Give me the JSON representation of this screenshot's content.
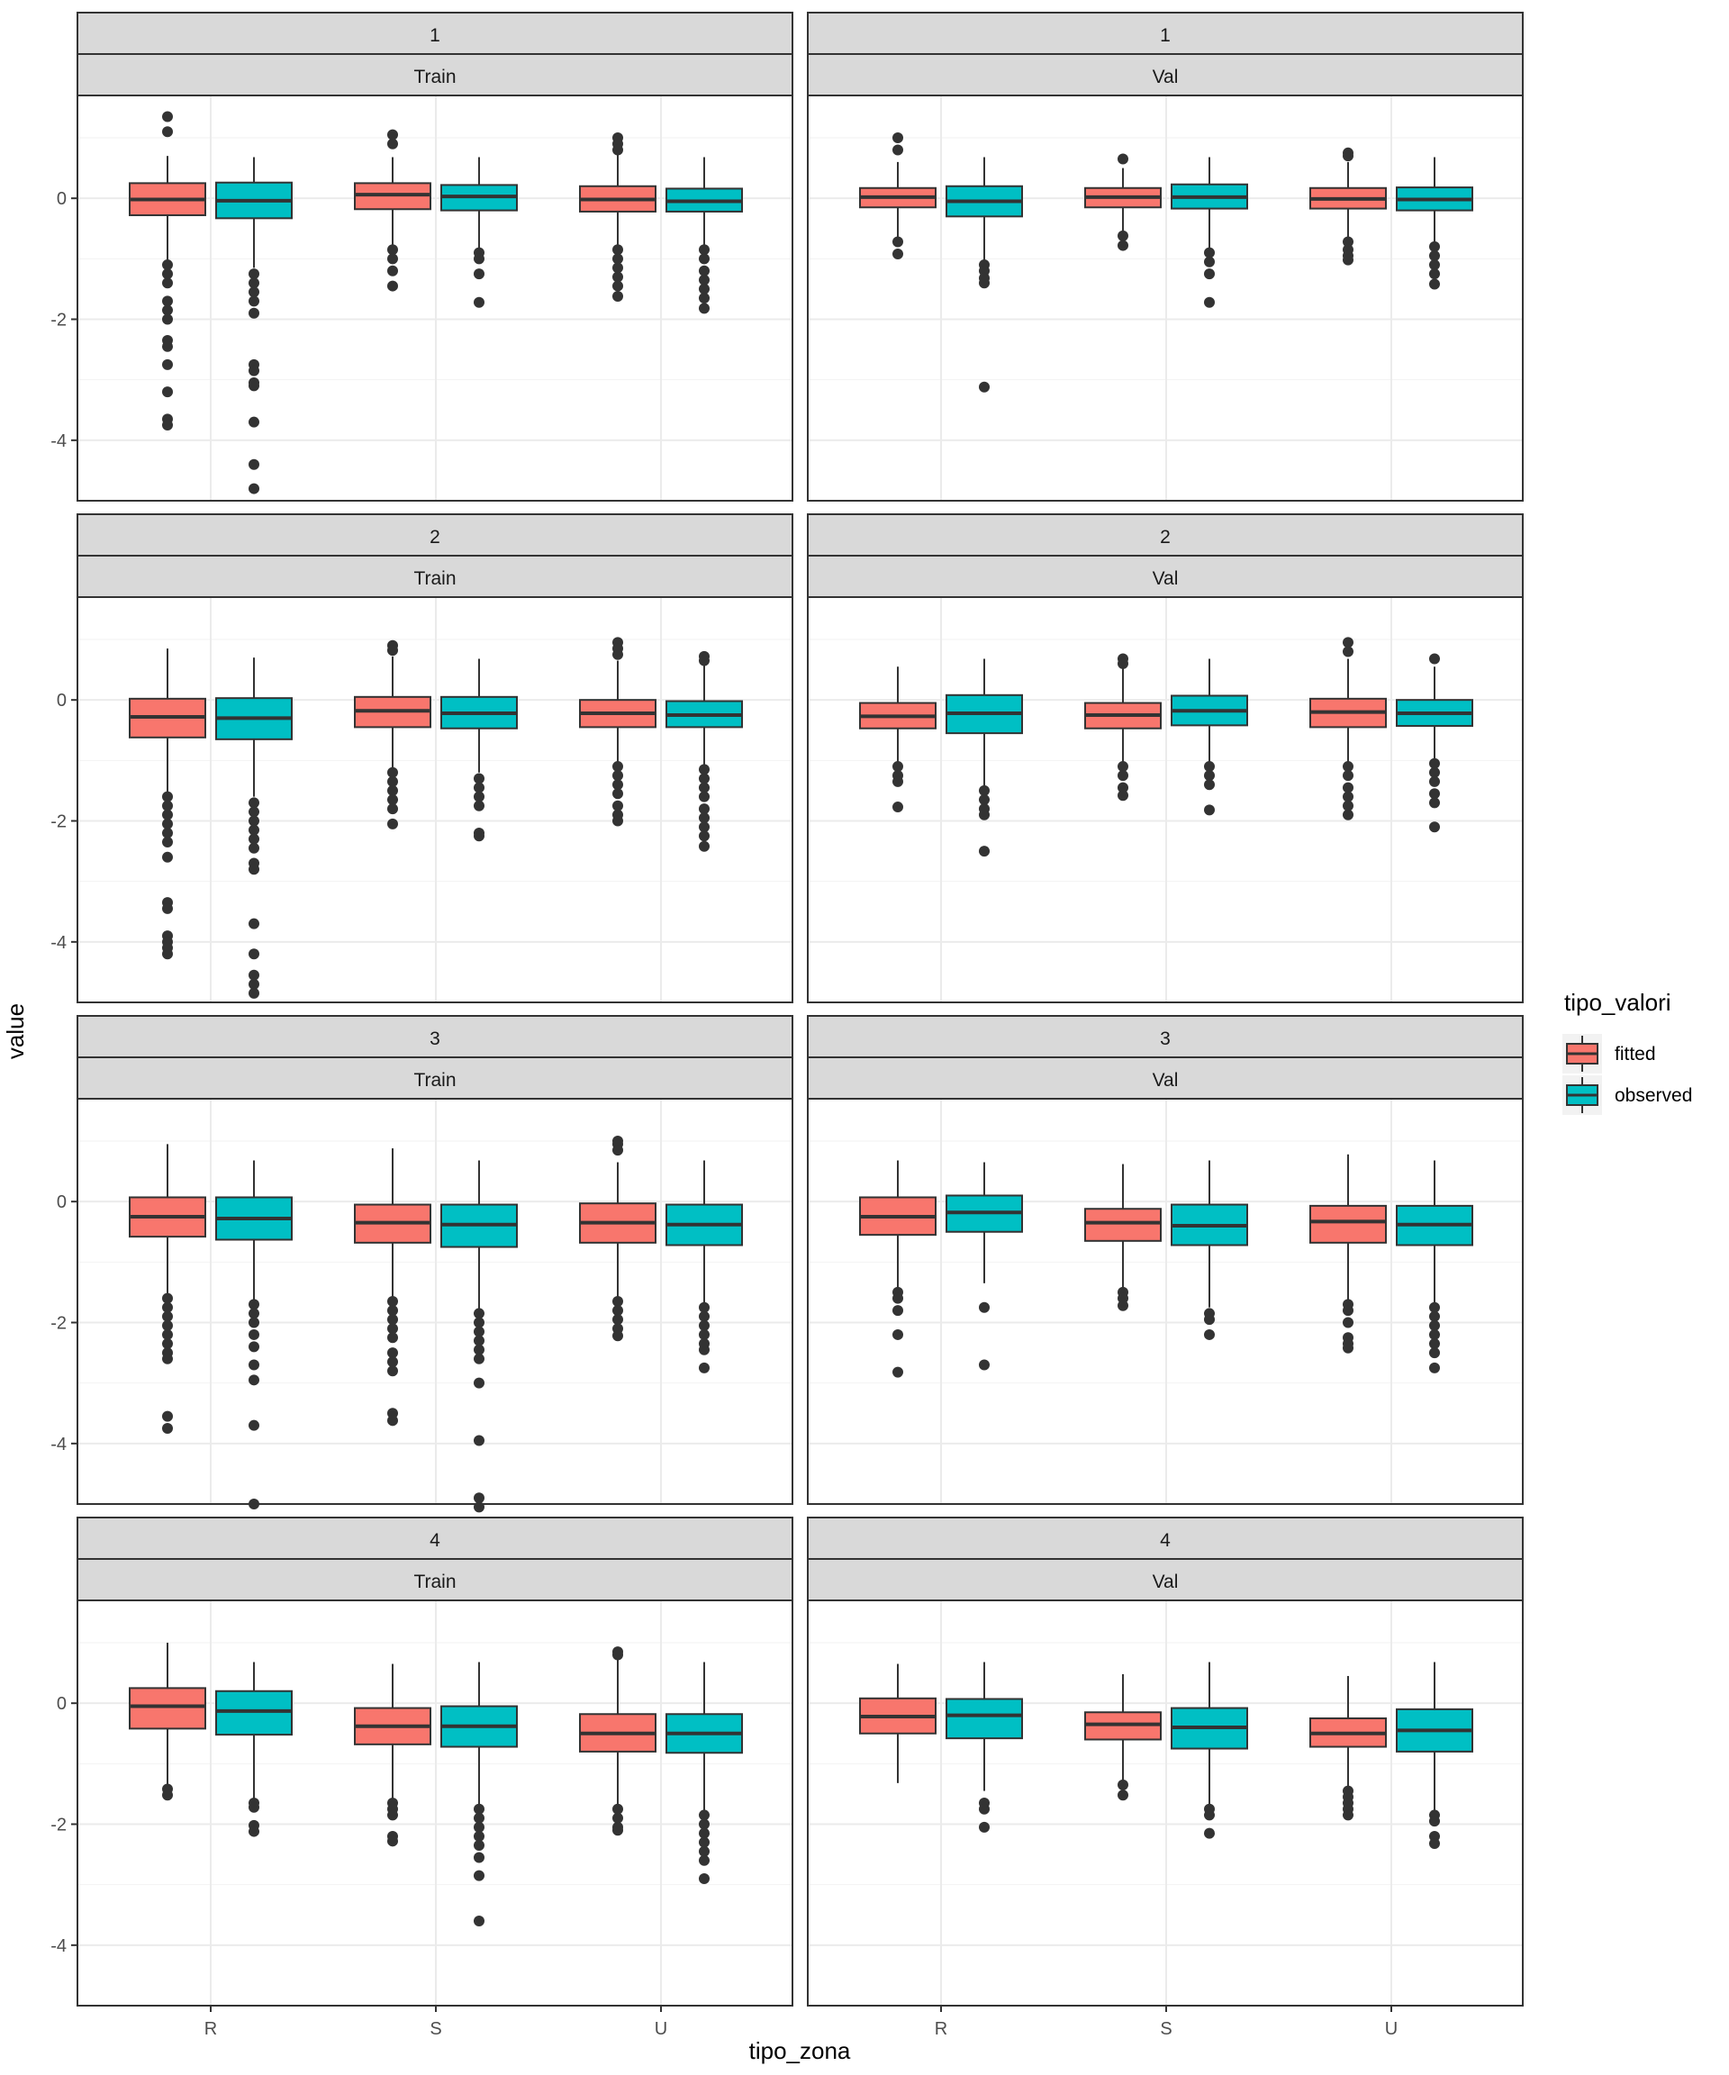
{
  "chart_data": {
    "type": "boxplot",
    "title": "",
    "xlabel": "tipo_zona",
    "ylabel": "value",
    "categories": [
      "R",
      "S",
      "U"
    ],
    "ylim": [
      -5.0,
      1.7
    ],
    "y_ticks": [
      0,
      -2,
      -4
    ],
    "y_tick_labels": [
      "0",
      "-2",
      "-4"
    ],
    "grid": true,
    "legend": {
      "title": "tipo_valori",
      "position": "right",
      "items": [
        {
          "name": "fitted",
          "color": "#F8766D"
        },
        {
          "name": "observed",
          "color": "#00BFC4"
        }
      ]
    },
    "panels": [
      {
        "strip_top": "1",
        "strip_bottom": "Train",
        "boxes": [
          {
            "category": "R",
            "series": "fitted",
            "q1": -0.28,
            "median": -0.02,
            "q3": 0.25,
            "wlo": -1.05,
            "whi": 0.7,
            "outliers": [
              1.35,
              1.1,
              -1.1,
              -1.25,
              -1.4,
              -1.7,
              -1.85,
              -2.0,
              -2.35,
              -2.45,
              -2.75,
              -3.2,
              -3.65,
              -3.75
            ]
          },
          {
            "category": "R",
            "series": "observed",
            "q1": -0.33,
            "median": -0.04,
            "q3": 0.26,
            "wlo": -1.15,
            "whi": 0.68,
            "outliers": [
              -1.25,
              -1.4,
              -1.55,
              -1.7,
              -1.9,
              -2.75,
              -2.85,
              -3.05,
              -3.1,
              -3.7,
              -4.4,
              -4.8
            ]
          },
          {
            "category": "S",
            "series": "fitted",
            "q1": -0.18,
            "median": 0.06,
            "q3": 0.25,
            "wlo": -0.8,
            "whi": 0.68,
            "outliers": [
              1.05,
              0.9,
              -0.85,
              -1.0,
              -1.2,
              -1.45
            ]
          },
          {
            "category": "S",
            "series": "observed",
            "q1": -0.2,
            "median": 0.03,
            "q3": 0.22,
            "wlo": -0.85,
            "whi": 0.68,
            "outliers": [
              -0.9,
              -1.0,
              -1.25,
              -1.72
            ]
          },
          {
            "category": "U",
            "series": "fitted",
            "q1": -0.22,
            "median": -0.02,
            "q3": 0.2,
            "wlo": -0.8,
            "whi": 0.72,
            "outliers": [
              1.0,
              0.9,
              0.8,
              -0.85,
              -1.0,
              -1.15,
              -1.3,
              -1.45,
              -1.62
            ]
          },
          {
            "category": "U",
            "series": "observed",
            "q1": -0.22,
            "median": -0.05,
            "q3": 0.16,
            "wlo": -0.8,
            "whi": 0.68,
            "outliers": [
              -0.85,
              -1.0,
              -1.2,
              -1.35,
              -1.5,
              -1.65,
              -1.82
            ]
          }
        ]
      },
      {
        "strip_top": "1",
        "strip_bottom": "Val",
        "boxes": [
          {
            "category": "R",
            "series": "fitted",
            "q1": -0.15,
            "median": 0.02,
            "q3": 0.17,
            "wlo": -0.7,
            "whi": 0.6,
            "outliers": [
              1.0,
              0.8,
              -0.72,
              -0.92
            ]
          },
          {
            "category": "R",
            "series": "observed",
            "q1": -0.3,
            "median": -0.05,
            "q3": 0.2,
            "wlo": -1.05,
            "whi": 0.68,
            "outliers": [
              -1.1,
              -1.2,
              -1.32,
              -1.4,
              -3.12
            ]
          },
          {
            "category": "S",
            "series": "fitted",
            "q1": -0.15,
            "median": 0.02,
            "q3": 0.17,
            "wlo": -0.6,
            "whi": 0.5,
            "outliers": [
              0.65,
              -0.62,
              -0.78
            ]
          },
          {
            "category": "S",
            "series": "observed",
            "q1": -0.17,
            "median": 0.02,
            "q3": 0.23,
            "wlo": -0.85,
            "whi": 0.68,
            "outliers": [
              -0.9,
              -1.05,
              -1.25,
              -1.72
            ]
          },
          {
            "category": "U",
            "series": "fitted",
            "q1": -0.17,
            "median": -0.01,
            "q3": 0.17,
            "wlo": -0.7,
            "whi": 0.6,
            "outliers": [
              0.75,
              0.7,
              -0.72,
              -0.85,
              -0.95,
              -1.02
            ]
          },
          {
            "category": "U",
            "series": "observed",
            "q1": -0.2,
            "median": -0.02,
            "q3": 0.18,
            "wlo": -0.75,
            "whi": 0.68,
            "outliers": [
              -0.8,
              -0.95,
              -1.1,
              -1.25,
              -1.42
            ]
          }
        ]
      },
      {
        "strip_top": "2",
        "strip_bottom": "Train",
        "boxes": [
          {
            "category": "R",
            "series": "fitted",
            "q1": -0.62,
            "median": -0.28,
            "q3": 0.02,
            "wlo": -1.55,
            "whi": 0.85,
            "outliers": [
              -1.6,
              -1.75,
              -1.9,
              -2.05,
              -2.2,
              -2.35,
              -2.6,
              -3.35,
              -3.45,
              -3.9,
              -4.0,
              -4.1,
              -4.2
            ]
          },
          {
            "category": "R",
            "series": "observed",
            "q1": -0.65,
            "median": -0.3,
            "q3": 0.03,
            "wlo": -1.6,
            "whi": 0.7,
            "outliers": [
              -1.7,
              -1.85,
              -2.0,
              -2.15,
              -2.3,
              -2.45,
              -2.7,
              -2.8,
              -3.7,
              -4.2,
              -4.55,
              -4.7,
              -4.85
            ]
          },
          {
            "category": "S",
            "series": "fitted",
            "q1": -0.45,
            "median": -0.18,
            "q3": 0.05,
            "wlo": -1.15,
            "whi": 0.72,
            "outliers": [
              0.9,
              0.82,
              -1.2,
              -1.35,
              -1.5,
              -1.65,
              -1.8,
              -2.05
            ]
          },
          {
            "category": "S",
            "series": "observed",
            "q1": -0.47,
            "median": -0.22,
            "q3": 0.05,
            "wlo": -1.2,
            "whi": 0.68,
            "outliers": [
              -1.3,
              -1.45,
              -1.6,
              -1.75,
              -2.2,
              -2.25
            ]
          },
          {
            "category": "U",
            "series": "fitted",
            "q1": -0.45,
            "median": -0.22,
            "q3": 0.0,
            "wlo": -1.05,
            "whi": 0.65,
            "outliers": [
              0.95,
              0.85,
              0.75,
              -1.1,
              -1.25,
              -1.4,
              -1.55,
              -1.75,
              -1.9,
              -2.0
            ]
          },
          {
            "category": "U",
            "series": "observed",
            "q1": -0.45,
            "median": -0.25,
            "q3": -0.02,
            "wlo": -1.1,
            "whi": 0.68,
            "outliers": [
              0.72,
              0.65,
              -1.15,
              -1.3,
              -1.45,
              -1.6,
              -1.8,
              -1.95,
              -2.1,
              -2.25,
              -2.42
            ]
          }
        ]
      },
      {
        "strip_top": "2",
        "strip_bottom": "Val",
        "boxes": [
          {
            "category": "R",
            "series": "fitted",
            "q1": -0.47,
            "median": -0.27,
            "q3": -0.05,
            "wlo": -1.05,
            "whi": 0.55,
            "outliers": [
              -1.1,
              -1.25,
              -1.35,
              -1.77
            ]
          },
          {
            "category": "R",
            "series": "observed",
            "q1": -0.55,
            "median": -0.22,
            "q3": 0.08,
            "wlo": -1.45,
            "whi": 0.68,
            "outliers": [
              -1.5,
              -1.65,
              -1.8,
              -1.9,
              -2.5
            ]
          },
          {
            "category": "S",
            "series": "fitted",
            "q1": -0.47,
            "median": -0.25,
            "q3": -0.05,
            "wlo": -1.05,
            "whi": 0.55,
            "outliers": [
              0.68,
              0.6,
              -1.1,
              -1.25,
              -1.45,
              -1.58
            ]
          },
          {
            "category": "S",
            "series": "observed",
            "q1": -0.42,
            "median": -0.18,
            "q3": 0.07,
            "wlo": -1.05,
            "whi": 0.68,
            "outliers": [
              -1.1,
              -1.25,
              -1.4,
              -1.82
            ]
          },
          {
            "category": "U",
            "series": "fitted",
            "q1": -0.45,
            "median": -0.2,
            "q3": 0.02,
            "wlo": -1.05,
            "whi": 0.68,
            "outliers": [
              0.95,
              0.8,
              -1.1,
              -1.25,
              -1.45,
              -1.6,
              -1.75,
              -1.9
            ]
          },
          {
            "category": "U",
            "series": "observed",
            "q1": -0.43,
            "median": -0.22,
            "q3": 0.0,
            "wlo": -1.0,
            "whi": 0.55,
            "outliers": [
              0.68,
              -1.05,
              -1.2,
              -1.35,
              -1.55,
              -1.7,
              -2.1
            ]
          }
        ]
      },
      {
        "strip_top": "3",
        "strip_bottom": "Train",
        "boxes": [
          {
            "category": "R",
            "series": "fitted",
            "q1": -0.58,
            "median": -0.25,
            "q3": 0.07,
            "wlo": -1.55,
            "whi": 0.95,
            "outliers": [
              -1.6,
              -1.75,
              -1.9,
              -2.05,
              -2.2,
              -2.35,
              -2.5,
              -2.6,
              -3.55,
              -3.75
            ]
          },
          {
            "category": "R",
            "series": "observed",
            "q1": -0.63,
            "median": -0.28,
            "q3": 0.07,
            "wlo": -1.65,
            "whi": 0.68,
            "outliers": [
              -1.7,
              -1.85,
              -2.0,
              -2.2,
              -2.4,
              -2.7,
              -2.95,
              -3.7,
              -5.0
            ]
          },
          {
            "category": "S",
            "series": "fitted",
            "q1": -0.68,
            "median": -0.35,
            "q3": -0.05,
            "wlo": -1.6,
            "whi": 0.88,
            "outliers": [
              -1.65,
              -1.8,
              -1.95,
              -2.1,
              -2.25,
              -2.5,
              -2.65,
              -2.8,
              -3.5,
              -3.62
            ]
          },
          {
            "category": "S",
            "series": "observed",
            "q1": -0.75,
            "median": -0.38,
            "q3": -0.05,
            "wlo": -1.8,
            "whi": 0.68,
            "outliers": [
              -1.85,
              -2.0,
              -2.15,
              -2.3,
              -2.45,
              -2.6,
              -3.0,
              -3.95,
              -4.9,
              -5.05
            ]
          },
          {
            "category": "U",
            "series": "fitted",
            "q1": -0.68,
            "median": -0.35,
            "q3": -0.03,
            "wlo": -1.6,
            "whi": 0.65,
            "outliers": [
              1.0,
              0.95,
              0.85,
              -1.65,
              -1.8,
              -1.95,
              -2.1,
              -2.22
            ]
          },
          {
            "category": "U",
            "series": "observed",
            "q1": -0.72,
            "median": -0.38,
            "q3": -0.05,
            "wlo": -1.7,
            "whi": 0.68,
            "outliers": [
              -1.75,
              -1.9,
              -2.05,
              -2.2,
              -2.35,
              -2.45,
              -2.75
            ]
          }
        ]
      },
      {
        "strip_top": "3",
        "strip_bottom": "Val",
        "boxes": [
          {
            "category": "R",
            "series": "fitted",
            "q1": -0.55,
            "median": -0.25,
            "q3": 0.07,
            "wlo": -1.45,
            "whi": 0.68,
            "outliers": [
              -1.5,
              -1.6,
              -1.8,
              -2.2,
              -2.82
            ]
          },
          {
            "category": "R",
            "series": "observed",
            "q1": -0.5,
            "median": -0.18,
            "q3": 0.1,
            "wlo": -1.35,
            "whi": 0.65,
            "outliers": [
              -1.75,
              -2.7
            ]
          },
          {
            "category": "S",
            "series": "fitted",
            "q1": -0.65,
            "median": -0.35,
            "q3": -0.12,
            "wlo": -1.45,
            "whi": 0.62,
            "outliers": [
              -1.5,
              -1.6,
              -1.72
            ]
          },
          {
            "category": "S",
            "series": "observed",
            "q1": -0.72,
            "median": -0.4,
            "q3": -0.05,
            "wlo": -1.75,
            "whi": 0.68,
            "outliers": [
              -1.85,
              -1.95,
              -2.2
            ]
          },
          {
            "category": "U",
            "series": "fitted",
            "q1": -0.68,
            "median": -0.33,
            "q3": -0.07,
            "wlo": -1.65,
            "whi": 0.78,
            "outliers": [
              -1.7,
              -1.8,
              -2.0,
              -2.25,
              -2.35,
              -2.42
            ]
          },
          {
            "category": "U",
            "series": "observed",
            "q1": -0.72,
            "median": -0.38,
            "q3": -0.07,
            "wlo": -1.7,
            "whi": 0.68,
            "outliers": [
              -1.75,
              -1.9,
              -2.05,
              -2.2,
              -2.35,
              -2.5,
              -2.75
            ]
          }
        ]
      },
      {
        "strip_top": "4",
        "strip_bottom": "Train",
        "boxes": [
          {
            "category": "R",
            "series": "fitted",
            "q1": -0.42,
            "median": -0.05,
            "q3": 0.25,
            "wlo": -1.4,
            "whi": 1.0,
            "outliers": [
              -1.42,
              -1.52
            ]
          },
          {
            "category": "R",
            "series": "observed",
            "q1": -0.52,
            "median": -0.13,
            "q3": 0.2,
            "wlo": -1.6,
            "whi": 0.68,
            "outliers": [
              -1.65,
              -1.72,
              -2.02,
              -2.12
            ]
          },
          {
            "category": "S",
            "series": "fitted",
            "q1": -0.68,
            "median": -0.38,
            "q3": -0.08,
            "wlo": -1.6,
            "whi": 0.65,
            "outliers": [
              -1.65,
              -1.75,
              -1.85,
              -2.2,
              -2.28
            ]
          },
          {
            "category": "S",
            "series": "observed",
            "q1": -0.72,
            "median": -0.38,
            "q3": -0.05,
            "wlo": -1.7,
            "whi": 0.68,
            "outliers": [
              -1.75,
              -1.9,
              -2.05,
              -2.2,
              -2.35,
              -2.55,
              -2.85,
              -3.6
            ]
          },
          {
            "category": "U",
            "series": "fitted",
            "q1": -0.8,
            "median": -0.5,
            "q3": -0.18,
            "wlo": -1.7,
            "whi": 0.72,
            "outliers": [
              0.85,
              0.8,
              -1.75,
              -1.9,
              -2.05,
              -2.1
            ]
          },
          {
            "category": "U",
            "series": "observed",
            "q1": -0.82,
            "median": -0.5,
            "q3": -0.18,
            "wlo": -1.8,
            "whi": 0.68,
            "outliers": [
              -1.85,
              -2.0,
              -2.15,
              -2.3,
              -2.45,
              -2.6,
              -2.9
            ]
          }
        ]
      },
      {
        "strip_top": "4",
        "strip_bottom": "Val",
        "boxes": [
          {
            "category": "R",
            "series": "fitted",
            "q1": -0.5,
            "median": -0.22,
            "q3": 0.08,
            "wlo": -1.32,
            "whi": 0.65,
            "outliers": []
          },
          {
            "category": "R",
            "series": "observed",
            "q1": -0.58,
            "median": -0.2,
            "q3": 0.07,
            "wlo": -1.45,
            "whi": 0.68,
            "outliers": [
              -1.65,
              -1.75,
              -2.05
            ]
          },
          {
            "category": "S",
            "series": "fitted",
            "q1": -0.6,
            "median": -0.35,
            "q3": -0.15,
            "wlo": -1.3,
            "whi": 0.48,
            "outliers": [
              -1.35,
              -1.52
            ]
          },
          {
            "category": "S",
            "series": "observed",
            "q1": -0.75,
            "median": -0.4,
            "q3": -0.08,
            "wlo": -1.7,
            "whi": 0.68,
            "outliers": [
              -1.75,
              -1.85,
              -2.15
            ]
          },
          {
            "category": "U",
            "series": "fitted",
            "q1": -0.72,
            "median": -0.5,
            "q3": -0.25,
            "wlo": -1.4,
            "whi": 0.45,
            "outliers": [
              -1.45,
              -1.55,
              -1.65,
              -1.75,
              -1.85
            ]
          },
          {
            "category": "U",
            "series": "observed",
            "q1": -0.8,
            "median": -0.45,
            "q3": -0.1,
            "wlo": -1.8,
            "whi": 0.68,
            "outliers": [
              -1.85,
              -1.95,
              -2.2,
              -2.32
            ]
          }
        ]
      }
    ]
  }
}
